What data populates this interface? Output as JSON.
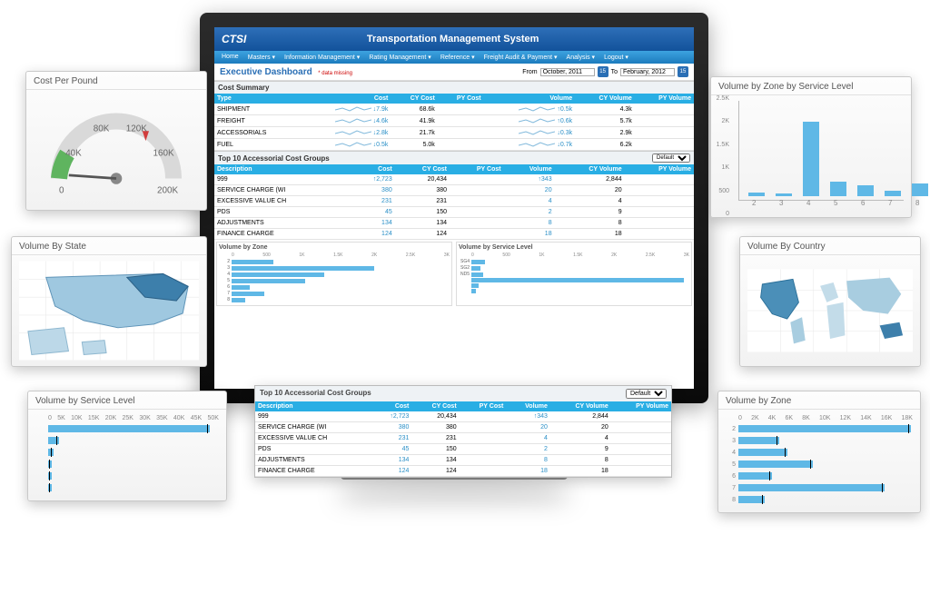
{
  "app": {
    "logo": "CTSI",
    "system_title": "Transportation Management System"
  },
  "menu": [
    "Home",
    "Masters ▾",
    "Information Management ▾",
    "Rating Management ▾",
    "Reference ▾",
    "Freight Audit & Payment ▾",
    "Analysis ▾",
    "Logout ▾"
  ],
  "dash": {
    "title": "Executive Dashboard",
    "missing": "* data missing",
    "from_lbl": "From",
    "to_lbl": "To",
    "from": "October, 2011",
    "to": "February, 2012",
    "day": "15"
  },
  "cost_summary": {
    "title": "Cost Summary",
    "cols": [
      "Type",
      "Cost",
      "CY Cost",
      "PY Cost",
      "Volume",
      "CY Volume",
      "PY Volume"
    ],
    "rows": [
      {
        "t": "SHIPMENT",
        "d": "↓7.9k",
        "cy": "68.6k",
        "vd": "↑0.5k",
        "cv": "4.3k"
      },
      {
        "t": "FREIGHT",
        "d": "↓4.6k",
        "cy": "41.9k",
        "vd": "↑0.6k",
        "cv": "5.7k"
      },
      {
        "t": "ACCESSORIALS",
        "d": "↓2.8k",
        "cy": "21.7k",
        "vd": "↓0.3k",
        "cv": "2.9k"
      },
      {
        "t": "FUEL",
        "d": "↓0.5k",
        "cy": "5.0k",
        "vd": "↓0.7k",
        "cv": "6.2k"
      }
    ]
  },
  "acc": {
    "title": "Top 10 Accessorial Cost Groups",
    "dropdown": "Default",
    "cols": [
      "Description",
      "Cost",
      "CY Cost",
      "PY Cost",
      "Volume",
      "CY Volume",
      "PY Volume"
    ],
    "rows": [
      {
        "d": "999",
        "c": "↑2,723",
        "cy": "20,434",
        "v": "↑343",
        "cv": "2,844"
      },
      {
        "d": "SERVICE CHARGE (WI",
        "c": "380",
        "cy": "380",
        "v": "20",
        "cv": "20"
      },
      {
        "d": "EXCESSIVE VALUE CH",
        "c": "231",
        "cy": "231",
        "v": "4",
        "cv": "4"
      },
      {
        "d": "PDS",
        "c": "45",
        "cy": "150",
        "v": "2",
        "cv": "9"
      },
      {
        "d": "ADJUSTMENTS",
        "c": "134",
        "cy": "134",
        "v": "8",
        "cv": "8"
      },
      {
        "d": "FINANCE CHARGE",
        "c": "124",
        "cy": "124",
        "v": "18",
        "cv": "18"
      }
    ]
  },
  "vbz": {
    "title": "Volume by Zone",
    "ticks": [
      "0",
      "500",
      "1K",
      "1.5K",
      "2K",
      "2.5K",
      "3K"
    ],
    "rows": [
      {
        "l": "2",
        "v": 18
      },
      {
        "l": "3",
        "v": 62
      },
      {
        "l": "4",
        "v": 40
      },
      {
        "l": "5",
        "v": 32
      },
      {
        "l": "6",
        "v": 8
      },
      {
        "l": "7",
        "v": 14
      },
      {
        "l": "8",
        "v": 6
      }
    ]
  },
  "vbsl": {
    "title": "Volume by Service Level",
    "ticks": [
      "0",
      "500",
      "1K",
      "1.5K",
      "2K",
      "2.5K",
      "3K"
    ],
    "rows": [
      {
        "l": "SG4",
        "v": 6
      },
      {
        "l": "SG2",
        "v": 4
      },
      {
        "l": "ND5",
        "v": 5
      },
      {
        "l": "",
        "v": 92
      },
      {
        "l": "",
        "v": 3
      },
      {
        "l": "",
        "v": 2
      }
    ]
  },
  "widgets": {
    "gauge": {
      "title": "Cost Per Pound",
      "ticks": [
        "0",
        "40K",
        "80K",
        "120K",
        "160K",
        "200K"
      ],
      "value": 0,
      "redzone_start": 120
    },
    "state": {
      "title": "Volume By State"
    },
    "country": {
      "title": "Volume By Country"
    },
    "svclvl": {
      "title": "Volume by Service Level",
      "ticks": [
        "0",
        "5K",
        "10K",
        "15K",
        "20K",
        "25K",
        "30K",
        "35K",
        "40K",
        "45K",
        "50K"
      ],
      "rows": [
        {
          "l": "",
          "v": 88
        },
        {
          "l": "",
          "v": 6
        },
        {
          "l": "",
          "v": 3
        },
        {
          "l": "",
          "v": 2
        },
        {
          "l": "",
          "v": 2
        },
        {
          "l": "",
          "v": 2
        }
      ]
    },
    "zone_sl": {
      "title": "Volume by Zone by Service Level",
      "yticks": [
        "2.5K",
        "2K",
        "1.5K",
        "1K",
        "500",
        "0"
      ],
      "xlabels": [
        "2",
        "3",
        "4",
        "5",
        "6",
        "7",
        "8"
      ],
      "bars": [
        4,
        3,
        82,
        16,
        12,
        6,
        14
      ],
      "bar_color": "#5fb8e6"
    },
    "zone_bottom": {
      "title": "Volume by Zone",
      "ticks": [
        "0",
        "2K",
        "4K",
        "6K",
        "8K",
        "10K",
        "12K",
        "14K",
        "16K",
        "18K"
      ],
      "rows": [
        {
          "l": "2",
          "v": 92
        },
        {
          "l": "3",
          "v": 22
        },
        {
          "l": "4",
          "v": 26
        },
        {
          "l": "5",
          "v": 40
        },
        {
          "l": "6",
          "v": 18
        },
        {
          "l": "7",
          "v": 78
        },
        {
          "l": "8",
          "v": 14
        }
      ]
    }
  },
  "colors": {
    "accent": "#29aee4",
    "bar": "#5fb8e6",
    "header": "#12529b",
    "green": "#5fb45f",
    "red": "#d13c3c"
  }
}
